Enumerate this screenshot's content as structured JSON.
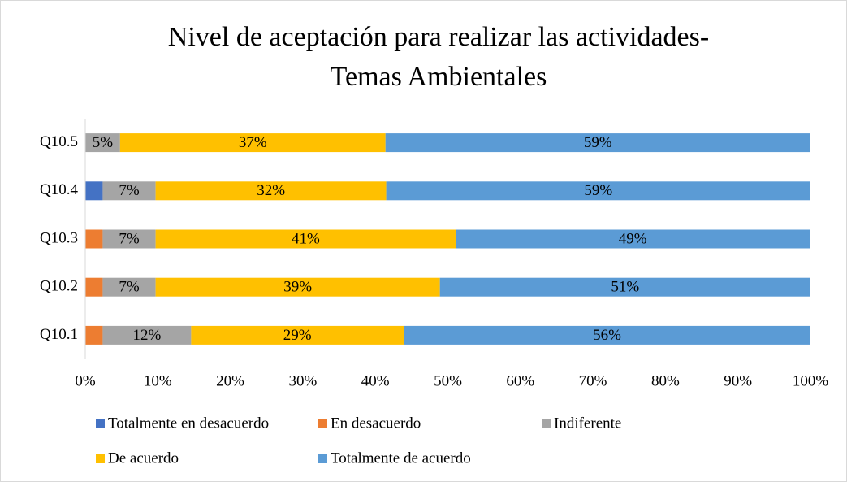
{
  "chart_data": {
    "type": "stacked_bar_horizontal",
    "title": [
      "Nivel de aceptación para realizar las actividades-",
      "Temas Ambientales"
    ],
    "categories": [
      "Q10.1",
      "Q10.2",
      "Q10.3",
      "Q10.4",
      "Q10.5"
    ],
    "series": [
      {
        "name": "Totalmente en desacuerdo",
        "color": "#4472c4",
        "values": [
          0,
          0,
          0,
          2.4,
          0
        ],
        "value_labels": [
          null,
          null,
          null,
          null,
          null
        ]
      },
      {
        "name": "En desacuerdo",
        "color": "#ed7d31",
        "values": [
          2.4,
          2.4,
          2.4,
          0,
          0
        ],
        "value_labels": [
          null,
          null,
          null,
          null,
          null
        ]
      },
      {
        "name": "Indiferente",
        "color": "#a5a5a5",
        "values": [
          12.2,
          7.3,
          7.3,
          7.3,
          4.8
        ],
        "value_labels": [
          "12%",
          "7%",
          "7%",
          "7%",
          "5%"
        ]
      },
      {
        "name": "De acuerdo",
        "color": "#ffc000",
        "values": [
          29.3,
          39.2,
          41.4,
          31.8,
          36.6
        ],
        "value_labels": [
          "29%",
          "39%",
          "41%",
          "32%",
          "37%"
        ]
      },
      {
        "name": "Totalmente de acuerdo",
        "color": "#5b9bd5",
        "values": [
          56.1,
          51.1,
          48.8,
          58.5,
          58.6
        ],
        "value_labels": [
          "56%",
          "51%",
          "49%",
          "59%",
          "59%"
        ]
      }
    ],
    "xlim": [
      0,
      100
    ],
    "xticks": [
      {
        "value": 0,
        "label": "0%"
      },
      {
        "value": 10,
        "label": "10%"
      },
      {
        "value": 20,
        "label": "20%"
      },
      {
        "value": 30,
        "label": "30%"
      },
      {
        "value": 40,
        "label": "40%"
      },
      {
        "value": 50,
        "label": "50%"
      },
      {
        "value": 60,
        "label": "60%"
      },
      {
        "value": 70,
        "label": "70%"
      },
      {
        "value": 80,
        "label": "80%"
      },
      {
        "value": 90,
        "label": "90%"
      },
      {
        "value": 100,
        "label": "100%"
      }
    ],
    "legend": "bottom"
  }
}
